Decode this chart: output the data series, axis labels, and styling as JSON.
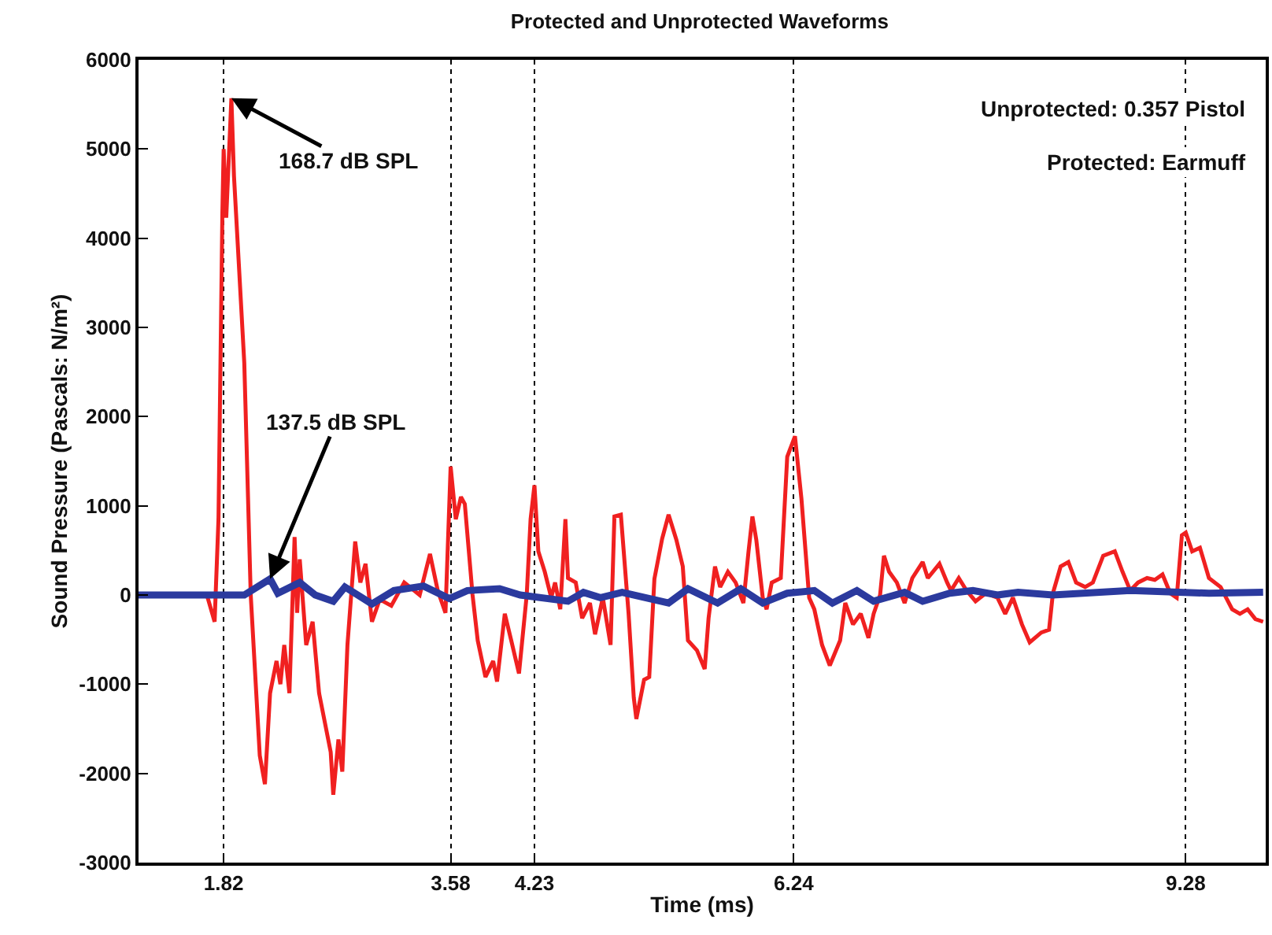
{
  "chart_data": {
    "type": "line",
    "title": "Protected and Unprotected Waveforms",
    "xlabel": "Time (ms)",
    "ylabel": "Sound Pressure (Pascals: N/m²)",
    "xlim": [
      1.16,
      9.9
    ],
    "ylim": [
      -3000,
      6000
    ],
    "xticks": [
      1.82,
      3.58,
      4.23,
      6.24,
      9.28
    ],
    "yticks": [
      -3000,
      -2000,
      -1000,
      0,
      1000,
      2000,
      3000,
      4000,
      5000,
      6000
    ],
    "grid": "x",
    "line_style": "solid",
    "series": [
      {
        "color": "#f02020",
        "x": [
          1.16,
          1.69,
          1.75,
          1.78,
          1.81,
          1.82,
          1.84,
          1.88,
          1.9,
          1.98,
          2.03,
          2.1,
          2.14,
          2.18,
          2.23,
          2.26,
          2.29,
          2.33,
          2.37,
          2.39,
          2.41,
          2.46,
          2.51,
          2.56,
          2.65,
          2.67,
          2.71,
          2.74,
          2.78,
          2.84,
          2.88,
          2.92,
          2.97,
          3.03,
          3.12,
          3.22,
          3.34,
          3.42,
          3.48,
          3.54,
          3.58,
          3.62,
          3.66,
          3.69,
          3.75,
          3.79,
          3.85,
          3.91,
          3.94,
          4.0,
          4.05,
          4.11,
          4.17,
          4.2,
          4.23,
          4.26,
          4.31,
          4.36,
          4.39,
          4.43,
          4.47,
          4.49,
          4.55,
          4.6,
          4.66,
          4.7,
          4.76,
          4.82,
          4.85,
          4.9,
          4.96,
          5.0,
          5.02,
          5.08,
          5.12,
          5.16,
          5.22,
          5.27,
          5.33,
          5.38,
          5.42,
          5.49,
          5.55,
          5.58,
          5.63,
          5.67,
          5.73,
          5.79,
          5.85,
          5.89,
          5.92,
          5.95,
          6.0,
          6.03,
          6.07,
          6.14,
          6.19,
          6.25,
          6.3,
          6.36,
          6.4,
          6.46,
          6.52,
          6.6,
          6.64,
          6.7,
          6.76,
          6.82,
          6.86,
          6.91,
          6.94,
          6.98,
          7.04,
          7.1,
          7.16,
          7.24,
          7.28,
          7.37,
          7.43,
          7.46,
          7.52,
          7.58,
          7.65,
          7.73,
          7.82,
          7.88,
          7.94,
          8.01,
          8.07,
          8.16,
          8.22,
          8.25,
          8.31,
          8.37,
          8.43,
          8.5,
          8.56,
          8.64,
          8.73,
          8.79,
          8.85,
          8.91,
          8.98,
          9.04,
          9.1,
          9.16,
          9.21,
          9.25,
          9.28,
          9.33,
          9.39,
          9.46,
          9.55,
          9.64,
          9.7,
          9.76,
          9.82,
          9.88
        ],
        "values": [
          0,
          0,
          -300,
          850,
          4280,
          5000,
          4230,
          5570,
          4700,
          2600,
          0,
          -1800,
          -2120,
          -1100,
          -740,
          -1000,
          -560,
          -1100,
          650,
          -200,
          400,
          -560,
          -300,
          -1100,
          -1760,
          -2240,
          -1620,
          -1980,
          -560,
          600,
          140,
          350,
          -300,
          -50,
          -120,
          140,
          0,
          460,
          50,
          -200,
          1440,
          850,
          1100,
          1020,
          0,
          -510,
          -920,
          -740,
          -970,
          -210,
          -510,
          -880,
          0,
          850,
          1230,
          490,
          260,
          -30,
          140,
          -160,
          850,
          190,
          140,
          -260,
          -90,
          -440,
          -30,
          -560,
          880,
          900,
          -210,
          -1150,
          -1390,
          -950,
          -920,
          180,
          630,
          900,
          620,
          320,
          -510,
          -620,
          -830,
          -260,
          320,
          90,
          260,
          140,
          -90,
          490,
          880,
          620,
          -30,
          -160,
          140,
          190,
          1550,
          1780,
          1080,
          -30,
          -160,
          -560,
          -790,
          -510,
          -90,
          -330,
          -210,
          -480,
          -210,
          0,
          440,
          260,
          140,
          -90,
          190,
          370,
          190,
          350,
          140,
          50,
          190,
          50,
          -70,
          20,
          -30,
          -210,
          -30,
          -330,
          -530,
          -420,
          -390,
          20,
          320,
          370,
          140,
          90,
          140,
          440,
          490,
          260,
          50,
          140,
          190,
          170,
          230,
          20,
          -30,
          670,
          700,
          490,
          530,
          190,
          90,
          -160,
          -210,
          -160,
          -270,
          -300
        ]
      },
      {
        "color": "#2b3a9e",
        "x": [
          1.16,
          1.98,
          2.18,
          2.24,
          2.41,
          2.53,
          2.67,
          2.76,
          2.97,
          3.14,
          3.37,
          3.57,
          3.71,
          3.96,
          4.12,
          4.49,
          4.61,
          4.74,
          4.91,
          5.27,
          5.42,
          5.65,
          5.83,
          6.0,
          6.19,
          6.4,
          6.54,
          6.73,
          6.86,
          7.1,
          7.24,
          7.45,
          7.63,
          7.82,
          7.98,
          8.25,
          8.85,
          9.46,
          9.88
        ],
        "values": [
          0,
          0,
          180,
          20,
          140,
          0,
          -70,
          90,
          -100,
          50,
          100,
          -40,
          50,
          70,
          0,
          -70,
          30,
          -30,
          30,
          -90,
          70,
          -90,
          70,
          -90,
          20,
          50,
          -90,
          50,
          -70,
          30,
          -70,
          20,
          50,
          0,
          30,
          0,
          50,
          20,
          30
        ]
      }
    ],
    "annotations": [
      {
        "text": "168.7 dB SPL",
        "x": 1.88,
        "y": 5570
      },
      {
        "text": "137.5 dB SPL",
        "x": 2.18,
        "y": 180
      },
      "Unprotected: 0.357 Pistol",
      "Protected: Earmuff"
    ]
  }
}
